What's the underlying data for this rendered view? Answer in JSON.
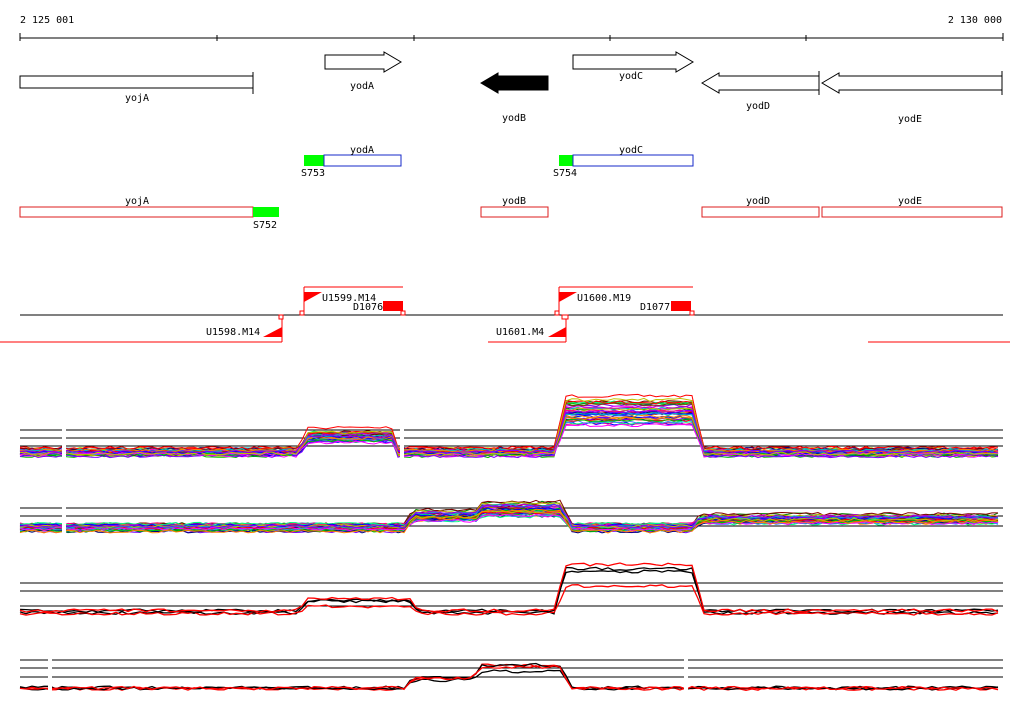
{
  "coordinates": {
    "start": "2 125 001",
    "end": "2 130 000"
  },
  "genes": [
    {
      "name": "yojA",
      "strand": "+",
      "highlight": false
    },
    {
      "name": "yodA",
      "strand": "+",
      "highlight": false
    },
    {
      "name": "yodB",
      "strand": "-",
      "highlight": true
    },
    {
      "name": "yodC",
      "strand": "+",
      "highlight": false
    },
    {
      "name": "yodD",
      "strand": "-",
      "highlight": false
    },
    {
      "name": "yodE",
      "strand": "-",
      "highlight": false
    }
  ],
  "blue_segments": [
    {
      "name": "yodA",
      "tag": "S753"
    },
    {
      "name": "yodC",
      "tag": "S754"
    }
  ],
  "red_segments": [
    {
      "name": "yojA",
      "tag": "S752"
    },
    {
      "name": "yodB",
      "tag": ""
    },
    {
      "name": "yodD",
      "tag": ""
    },
    {
      "name": "yodE",
      "tag": ""
    }
  ],
  "upstream_labels": [
    "U1599.M14",
    "D1076",
    "U1600.M19",
    "D1077",
    "U1598.M14",
    "U1601.M4"
  ],
  "colors": {
    "blue_segment": "#1428c8",
    "red_segment": "#dc1e1e",
    "green_tag": "#00ff00",
    "red_mark": "#ff0000",
    "highlight": "#000000"
  },
  "tracks": [
    {
      "kind": "multicolor",
      "lines": 40
    },
    {
      "kind": "multicolor",
      "lines": 40
    },
    {
      "kind": "black-red",
      "lines": 4
    },
    {
      "kind": "black-red",
      "lines": 4
    }
  ]
}
